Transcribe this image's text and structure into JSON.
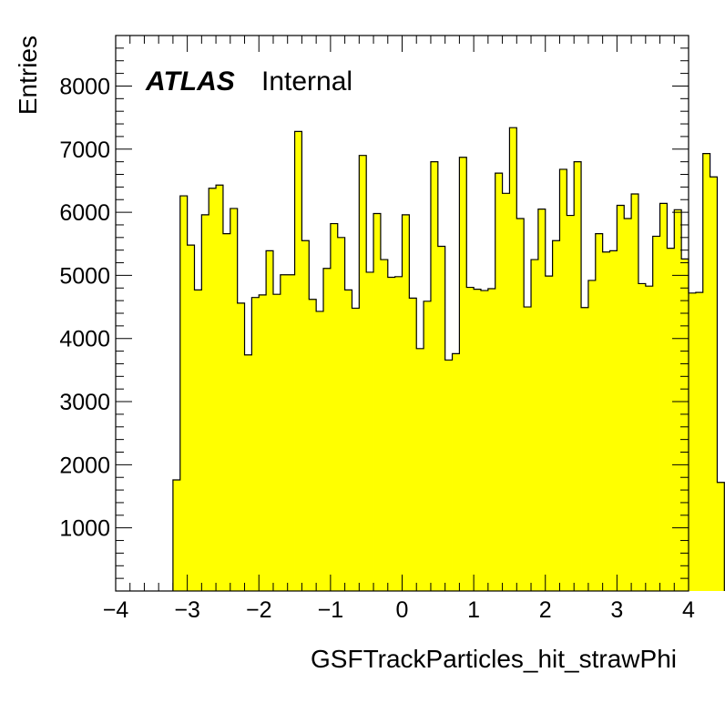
{
  "chart_data": {
    "type": "bar",
    "style": "histogram",
    "fill_color": "#ffff00",
    "line_color": "#000000",
    "xlabel": "GSFTrackParticles_hit_strawPhi",
    "ylabel": "Entries",
    "xlim": [
      -4,
      4
    ],
    "ylim": [
      0,
      8800
    ],
    "xticks": [
      -4,
      -3,
      -2,
      -1,
      0,
      1,
      2,
      3,
      4
    ],
    "xtick_labels": [
      "−4",
      "−3",
      "−2",
      "−1",
      "0",
      "1",
      "2",
      "3",
      "4"
    ],
    "yticks": [
      1000,
      2000,
      3000,
      4000,
      5000,
      6000,
      7000,
      8000
    ],
    "ytick_labels": [
      "1000",
      "2000",
      "3000",
      "4000",
      "5000",
      "6000",
      "7000",
      "8000"
    ],
    "grid": false,
    "bin_edges_start": -3.2,
    "bin_width": 0.1,
    "values": [
      1760,
      6260,
      5480,
      4770,
      5960,
      6380,
      6430,
      5660,
      6060,
      4560,
      3740,
      4650,
      4690,
      5390,
      4700,
      5010,
      5010,
      7280,
      5550,
      4620,
      4430,
      5110,
      5820,
      5600,
      4770,
      4480,
      6900,
      5050,
      5980,
      5250,
      4970,
      4980,
      5960,
      4640,
      3840,
      4590,
      6800,
      5460,
      3660,
      3760,
      6870,
      4810,
      4780,
      4760,
      4790,
      6620,
      6300,
      7340,
      5900,
      4500,
      5250,
      6050,
      4990,
      5550,
      6680,
      5950,
      6800,
      4490,
      4920,
      5660,
      5370,
      5390,
      6110,
      5900,
      6290,
      4870,
      4830,
      5620,
      6140,
      5430,
      6040,
      5260,
      4720,
      4730,
      6930,
      6560,
      1720
    ]
  },
  "labels": {
    "atlas": "ATLAS",
    "internal": "Internal"
  }
}
